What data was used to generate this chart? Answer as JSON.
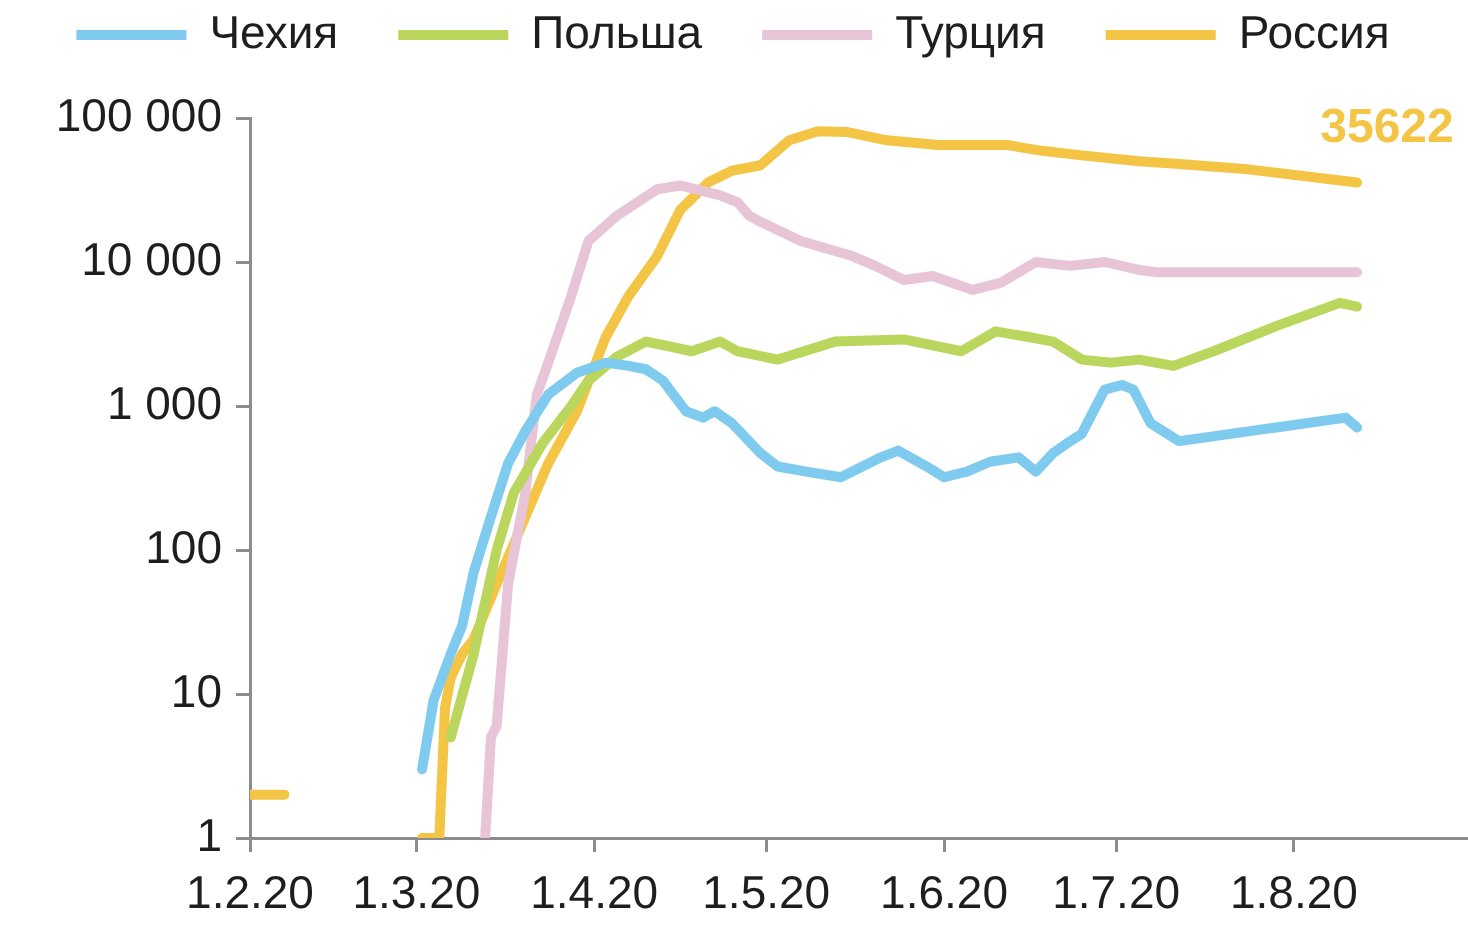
{
  "chart_data": {
    "type": "line",
    "legend": "top",
    "log": "y",
    "xlim": [
      "2020-02-01",
      "2020-08-31"
    ],
    "xticks": [
      {
        "value": "2020-02-01",
        "label": "1.2.20"
      },
      {
        "value": "2020-03-01",
        "label": "1.3.20"
      },
      {
        "value": "2020-04-01",
        "label": "1.4.20"
      },
      {
        "value": "2020-05-01",
        "label": "1.5.20"
      },
      {
        "value": "2020-06-01",
        "label": "1.6.20"
      },
      {
        "value": "2020-07-01",
        "label": "1.7.20"
      },
      {
        "value": "2020-08-01",
        "label": "1.8.20"
      }
    ],
    "ylim": [
      1,
      100000
    ],
    "yticks": [
      1,
      10,
      100,
      {
        "value": 1000,
        "label": "1 000"
      },
      {
        "value": 10000,
        "label": "10 000"
      },
      {
        "value": 100000,
        "label": "100 000"
      }
    ],
    "annotations": [
      {
        "text": "35622",
        "x": "2020-08-12",
        "y": 35622
      }
    ],
    "series": [
      {
        "name": "Чехия",
        "color": "#7ecbef",
        "x": [
          "2020-03-02",
          "2020-03-04",
          "2020-03-07",
          "2020-03-09",
          "2020-03-11",
          "2020-03-14",
          "2020-03-17",
          "2020-03-20",
          "2020-03-24",
          "2020-03-29",
          "2020-04-03",
          "2020-04-07",
          "2020-04-10",
          "2020-04-13",
          "2020-04-17",
          "2020-04-20",
          "2020-04-22",
          "2020-04-25",
          "2020-04-30",
          "2020-05-03",
          "2020-05-08",
          "2020-05-14",
          "2020-05-21",
          "2020-05-24",
          "2020-05-29",
          "2020-06-01",
          "2020-06-05",
          "2020-06-09",
          "2020-06-14",
          "2020-06-17",
          "2020-06-20",
          "2020-06-23",
          "2020-06-25",
          "2020-06-29",
          "2020-07-02",
          "2020-07-04",
          "2020-07-07",
          "2020-07-12",
          "2020-08-10",
          "2020-08-12"
        ],
        "values": [
          3,
          9,
          19,
          30,
          70,
          170,
          400,
          670,
          1200,
          1700,
          2000,
          1900,
          1800,
          1500,
          920,
          830,
          920,
          760,
          470,
          380,
          350,
          320,
          440,
          490,
          380,
          320,
          350,
          410,
          440,
          350,
          470,
          570,
          640,
          1300,
          1400,
          1300,
          760,
          570,
          830,
          710
        ]
      },
      {
        "name": "Польша",
        "color": "#bad65c",
        "x": [
          "2020-03-07",
          "2020-03-08",
          "2020-03-11",
          "2020-03-15",
          "2020-03-18",
          "2020-03-23",
          "2020-03-28",
          "2020-03-31",
          "2020-04-05",
          "2020-04-10",
          "2020-04-14",
          "2020-04-18",
          "2020-04-23",
          "2020-04-26",
          "2020-05-03",
          "2020-05-13",
          "2020-05-25",
          "2020-06-04",
          "2020-06-10",
          "2020-06-16",
          "2020-06-20",
          "2020-06-25",
          "2020-06-30",
          "2020-07-05",
          "2020-07-11",
          "2020-07-18",
          "2020-07-29",
          "2020-08-09",
          "2020-08-12"
        ],
        "values": [
          5,
          7,
          19,
          100,
          250,
          550,
          1000,
          1500,
          2200,
          2800,
          2600,
          2400,
          2800,
          2400,
          2100,
          2800,
          2900,
          2400,
          3300,
          3000,
          2800,
          2100,
          2000,
          2100,
          1900,
          2400,
          3600,
          5200,
          4900
        ]
      },
      {
        "name": "Турция",
        "color": "#e8c5d6",
        "x": [
          "2020-03-13",
          "2020-03-14",
          "2020-03-15",
          "2020-03-17",
          "2020-03-20",
          "2020-03-22",
          "2020-03-24",
          "2020-03-28",
          "2020-03-31",
          "2020-04-05",
          "2020-04-12",
          "2020-04-16",
          "2020-04-23",
          "2020-04-26",
          "2020-04-28",
          "2020-04-30",
          "2020-05-07",
          "2020-05-16",
          "2020-05-20",
          "2020-05-25",
          "2020-05-30",
          "2020-06-06",
          "2020-06-11",
          "2020-06-17",
          "2020-06-23",
          "2020-06-29",
          "2020-07-05",
          "2020-07-08",
          "2020-08-12"
        ],
        "values": [
          1,
          5,
          6,
          58,
          250,
          1200,
          2000,
          5800,
          14000,
          21000,
          32000,
          34000,
          29000,
          26000,
          21000,
          19000,
          14000,
          11000,
          9400,
          7500,
          8000,
          6400,
          7200,
          10000,
          9400,
          10000,
          8800,
          8500,
          8500
        ]
      },
      {
        "name": "Россия",
        "color": "#f4c444",
        "x": [
          "2020-02-01",
          "2020-02-07",
          "2020-02-08",
          "2020-03-02",
          "2020-03-05",
          "2020-03-06",
          "2020-03-07",
          "2020-03-09",
          "2020-03-11",
          "2020-03-15",
          "2020-03-20",
          "2020-03-24",
          "2020-03-29",
          "2020-04-03",
          "2020-04-07",
          "2020-04-12",
          "2020-04-16",
          "2020-04-21",
          "2020-04-25",
          "2020-04-30",
          "2020-05-05",
          "2020-05-10",
          "2020-05-15",
          "2020-05-22",
          "2020-05-31",
          "2020-06-12",
          "2020-06-17",
          "2020-06-25",
          "2020-07-05",
          "2020-07-12",
          "2020-07-24",
          "2020-08-12"
        ],
        "values": [
          2,
          2,
          null,
          1,
          1,
          8,
          13,
          19,
          24,
          58,
          170,
          400,
          920,
          3000,
          5800,
          11000,
          23000,
          36000,
          43000,
          47000,
          70000,
          81000,
          80000,
          70000,
          65000,
          65000,
          60000,
          55000,
          50000,
          48000,
          44000,
          35622
        ]
      }
    ]
  }
}
